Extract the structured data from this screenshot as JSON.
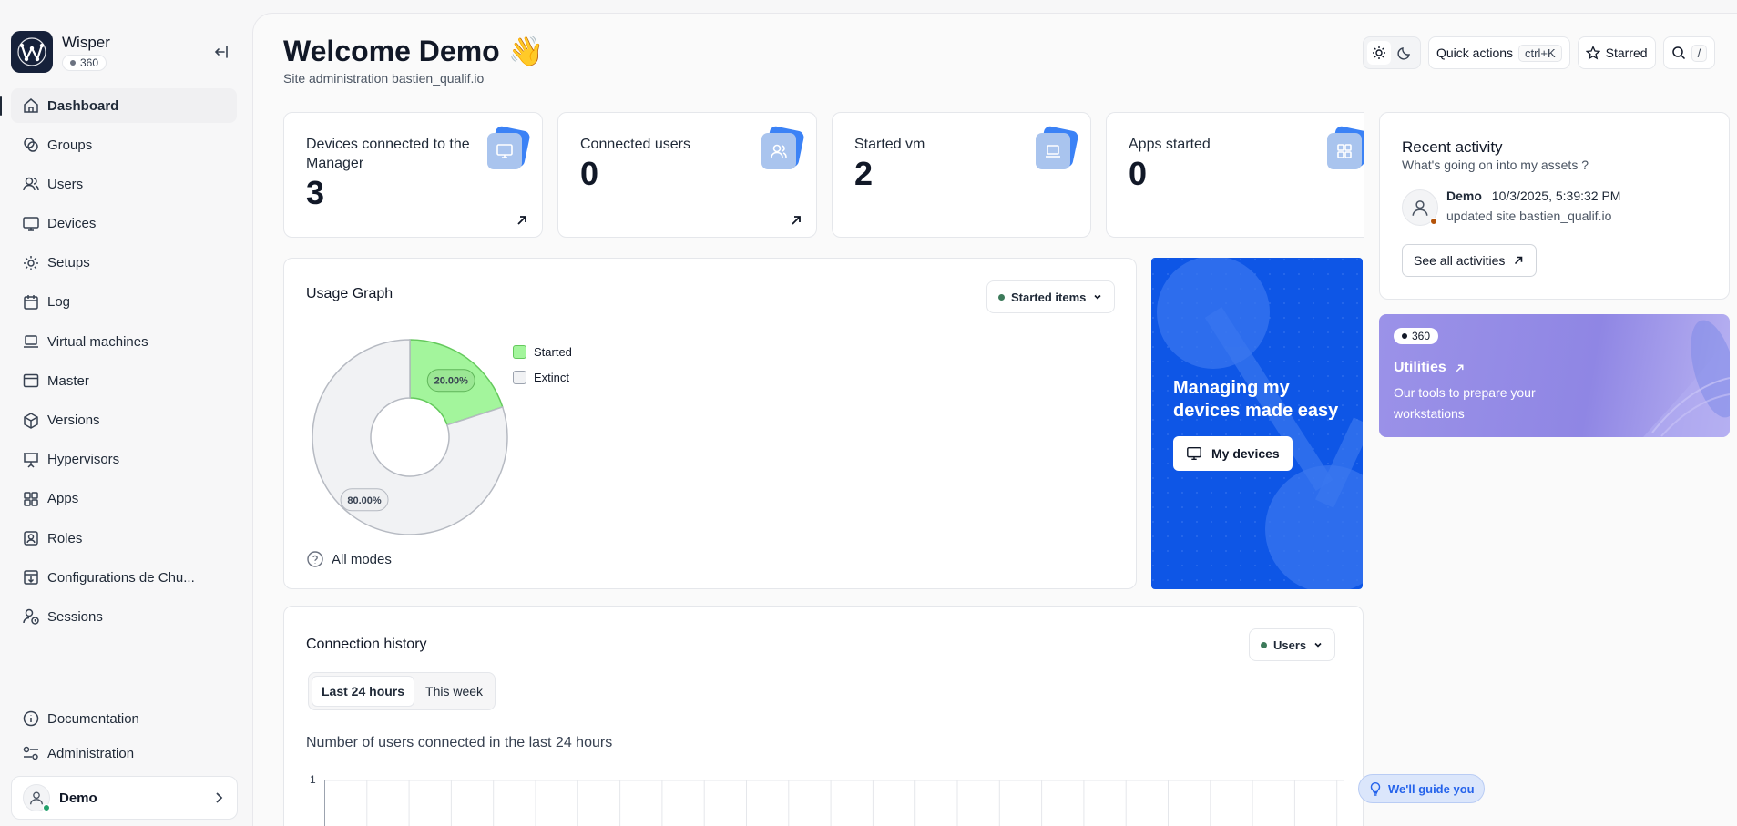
{
  "brand": {
    "name": "Wisper",
    "badge": "360"
  },
  "sidebar": {
    "items": [
      {
        "label": "Dashboard",
        "icon": "home-icon",
        "active": true
      },
      {
        "label": "Groups",
        "icon": "groups-icon"
      },
      {
        "label": "Users",
        "icon": "users-icon"
      },
      {
        "label": "Devices",
        "icon": "monitor-icon"
      },
      {
        "label": "Setups",
        "icon": "gear-icon"
      },
      {
        "label": "Log",
        "icon": "calendar-icon"
      },
      {
        "label": "Virtual machines",
        "icon": "laptop-icon"
      },
      {
        "label": "Master",
        "icon": "window-icon"
      },
      {
        "label": "Versions",
        "icon": "package-icon"
      },
      {
        "label": "Hypervisors",
        "icon": "presentation-icon"
      },
      {
        "label": "Apps",
        "icon": "grid-icon"
      },
      {
        "label": "Roles",
        "icon": "id-card-icon"
      },
      {
        "label": "Configurations de Chu...",
        "icon": "download-box-icon"
      },
      {
        "label": "Sessions",
        "icon": "user-clock-icon"
      }
    ],
    "bottom": [
      {
        "label": "Documentation",
        "icon": "info-icon"
      },
      {
        "label": "Administration",
        "icon": "sliders-icon"
      }
    ],
    "user": {
      "name": "Demo"
    }
  },
  "header": {
    "title": "Welcome Demo 👋",
    "subtitle": "Site administration bastien_qualif.io"
  },
  "toolbar": {
    "quick_actions": "Quick actions",
    "quick_actions_kbd": "ctrl+K",
    "starred": "Starred",
    "search_kbd": "/"
  },
  "stats": [
    {
      "label": "Devices connected to the Manager",
      "value": "3",
      "icon": "monitor-icon"
    },
    {
      "label": "Connected users",
      "value": "0",
      "icon": "users-icon"
    },
    {
      "label": "Started vm",
      "value": "2",
      "icon": "laptop-icon"
    },
    {
      "label": "Apps started",
      "value": "0",
      "icon": "grid-icon"
    }
  ],
  "usage": {
    "title": "Usage Graph",
    "select_value": "Started items",
    "all_modes": "All modes"
  },
  "chart_data": {
    "type": "pie",
    "categories": [
      "Started",
      "Extinct"
    ],
    "values": [
      20,
      80
    ],
    "labels": [
      "20.00%",
      "80.00%"
    ],
    "colors": [
      "#a3f59c",
      "#f1f2f4"
    ],
    "legend": "right"
  },
  "promo": {
    "title": "Managing my devices made easy",
    "button": "My devices"
  },
  "connection": {
    "title": "Connection history",
    "select_value": "Users",
    "tabs": [
      "Last 24 hours",
      "This week"
    ],
    "chart_title": "Number of users connected in the last 24 hours",
    "y_tick": "1"
  },
  "activity": {
    "title": "Recent activity",
    "subtitle": "What's going on into my assets ?",
    "user": "Demo",
    "timestamp": "10/3/2025, 5:39:32 PM",
    "action": "updated site bastien_qualif.io",
    "see_all": "See all activities"
  },
  "utilities": {
    "badge": "360",
    "title": "Utilities",
    "description": "Our tools to prepare your workstations"
  },
  "guide": {
    "label": "We'll guide you"
  }
}
